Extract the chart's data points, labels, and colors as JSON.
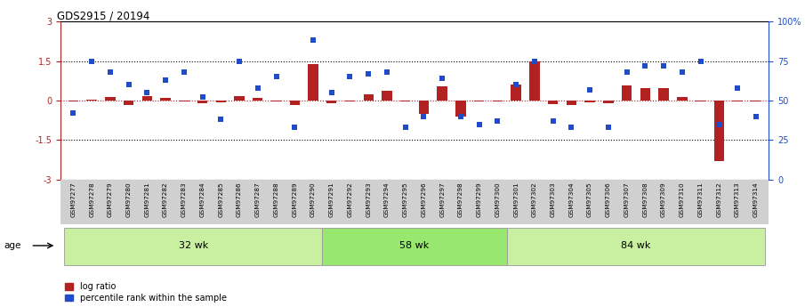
{
  "title": "GDS2915 / 20194",
  "samples": [
    "GSM97277",
    "GSM97278",
    "GSM97279",
    "GSM97280",
    "GSM97281",
    "GSM97282",
    "GSM97283",
    "GSM97284",
    "GSM97285",
    "GSM97286",
    "GSM97287",
    "GSM97288",
    "GSM97289",
    "GSM97290",
    "GSM97291",
    "GSM97292",
    "GSM97293",
    "GSM97294",
    "GSM97295",
    "GSM97296",
    "GSM97297",
    "GSM97298",
    "GSM97299",
    "GSM97300",
    "GSM97301",
    "GSM97302",
    "GSM97303",
    "GSM97304",
    "GSM97305",
    "GSM97306",
    "GSM97307",
    "GSM97308",
    "GSM97309",
    "GSM97310",
    "GSM97311",
    "GSM97312",
    "GSM97313",
    "GSM97314"
  ],
  "log_ratio": [
    -0.05,
    0.05,
    0.12,
    -0.18,
    0.18,
    0.1,
    -0.05,
    -0.1,
    -0.08,
    0.18,
    0.1,
    -0.05,
    -0.18,
    1.4,
    -0.1,
    -0.05,
    0.22,
    0.38,
    -0.05,
    -0.52,
    0.55,
    -0.62,
    -0.05,
    -0.05,
    0.62,
    1.48,
    -0.15,
    -0.18,
    -0.08,
    -0.1,
    0.58,
    0.48,
    0.48,
    0.12,
    -0.05,
    -2.3,
    -0.05,
    -0.05
  ],
  "percentile_rank": [
    42,
    75,
    68,
    60,
    55,
    63,
    68,
    52,
    38,
    75,
    58,
    65,
    33,
    88,
    55,
    65,
    67,
    68,
    33,
    40,
    64,
    40,
    35,
    37,
    60,
    75,
    37,
    33,
    57,
    33,
    68,
    72,
    72,
    68,
    75,
    35,
    58,
    40
  ],
  "groups": [
    {
      "label": "32 wk",
      "start": 0,
      "end": 14
    },
    {
      "label": "58 wk",
      "start": 14,
      "end": 24
    },
    {
      "label": "84 wk",
      "start": 24,
      "end": 38
    }
  ],
  "ylim_left": [
    -3,
    3
  ],
  "ylim_right": [
    0,
    100
  ],
  "yticks_left": [
    -3,
    -1.5,
    0,
    1.5,
    3
  ],
  "yticks_right": [
    0,
    25,
    50,
    75,
    100
  ],
  "yticklabels_right": [
    "0",
    "25",
    "50",
    "75",
    "100%"
  ],
  "hlines_dotted": [
    -1.5,
    1.5
  ],
  "hline_red": 0,
  "bar_color": "#b22222",
  "dot_color": "#1f4cc8",
  "group_color_32": "#c8f0a0",
  "group_color_58": "#98e870",
  "group_color_84": "#c8f0a0",
  "xtick_bg_color": "#d0d0d0",
  "legend_bar_label": "log ratio",
  "legend_dot_label": "percentile rank within the sample",
  "age_label": "age"
}
